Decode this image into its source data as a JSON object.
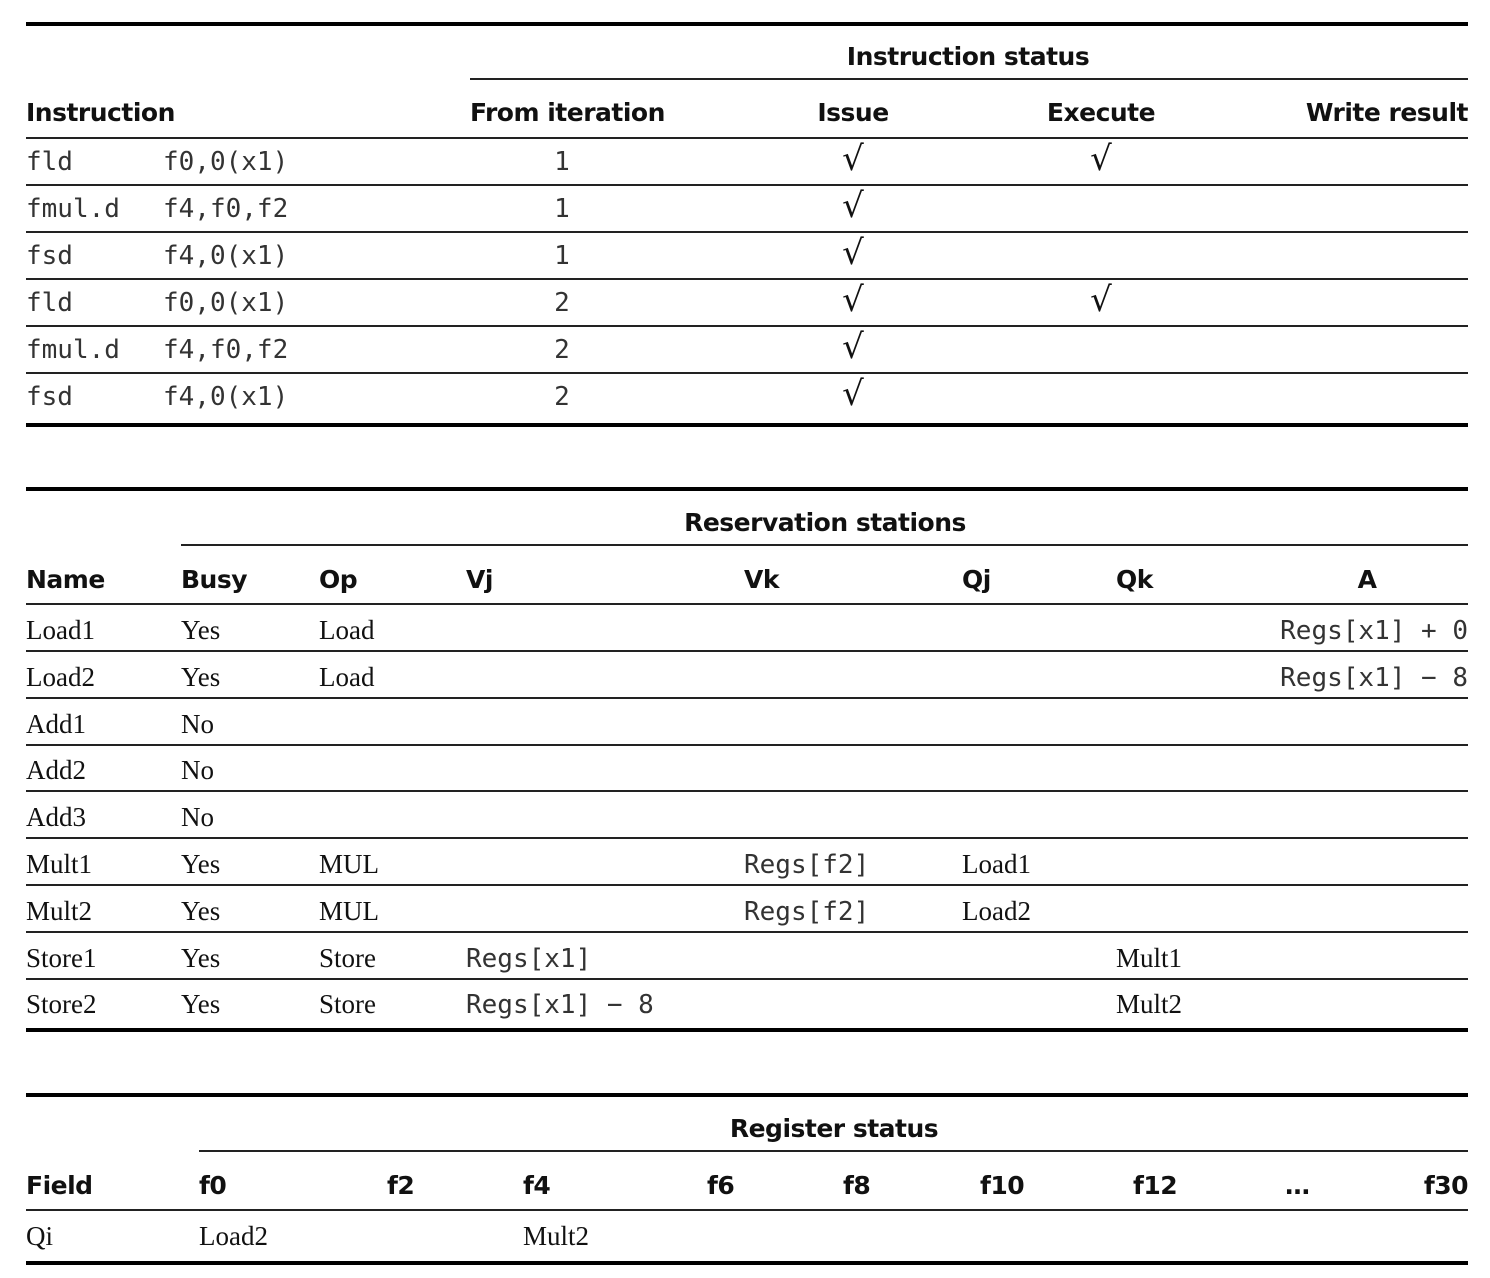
{
  "instruction_status": {
    "caption": "Instruction status",
    "headers": {
      "instruction": "Instruction",
      "iteration": "From iteration",
      "issue": "Issue",
      "execute": "Execute",
      "write": "Write result"
    },
    "check_symbol": "√",
    "rows": [
      {
        "op": "fld",
        "operands": "f0,0(x1)",
        "iteration": "1",
        "issue": true,
        "execute": true,
        "write": false
      },
      {
        "op": "fmul.d",
        "operands": "f4,f0,f2",
        "iteration": "1",
        "issue": true,
        "execute": false,
        "write": false
      },
      {
        "op": "fsd",
        "operands": "f4,0(x1)",
        "iteration": "1",
        "issue": true,
        "execute": false,
        "write": false
      },
      {
        "op": "fld",
        "operands": "f0,0(x1)",
        "iteration": "2",
        "issue": true,
        "execute": true,
        "write": false
      },
      {
        "op": "fmul.d",
        "operands": "f4,f0,f2",
        "iteration": "2",
        "issue": true,
        "execute": false,
        "write": false
      },
      {
        "op": "fsd",
        "operands": "f4,0(x1)",
        "iteration": "2",
        "issue": true,
        "execute": false,
        "write": false
      }
    ]
  },
  "reservation_stations": {
    "caption": "Reservation stations",
    "headers": [
      "Name",
      "Busy",
      "Op",
      "Vj",
      "Vk",
      "Qj",
      "Qk",
      "A"
    ],
    "rows": [
      [
        "Load1",
        "Yes",
        "Load",
        "",
        "",
        "",
        "",
        "Regs[x1] + 0"
      ],
      [
        "Load2",
        "Yes",
        "Load",
        "",
        "",
        "",
        "",
        "Regs[x1] − 8"
      ],
      [
        "Add1",
        "No",
        "",
        "",
        "",
        "",
        "",
        ""
      ],
      [
        "Add2",
        "No",
        "",
        "",
        "",
        "",
        "",
        ""
      ],
      [
        "Add3",
        "No",
        "",
        "",
        "",
        "",
        "",
        ""
      ],
      [
        "Mult1",
        "Yes",
        "MUL",
        "",
        "Regs[f2]",
        "Load1",
        "",
        ""
      ],
      [
        "Mult2",
        "Yes",
        "MUL",
        "",
        "Regs[f2]",
        "Load2",
        "",
        ""
      ],
      [
        "Store1",
        "Yes",
        "Store",
        "Regs[x1]",
        "",
        "",
        "Mult1",
        ""
      ],
      [
        "Store2",
        "Yes",
        "Store",
        "Regs[x1] − 8",
        "",
        "",
        "Mult2",
        ""
      ]
    ]
  },
  "register_status": {
    "caption": "Register status",
    "headers": [
      "Field",
      "f0",
      "f2",
      "f4",
      "f6",
      "f8",
      "f10",
      "f12",
      "…",
      "f30"
    ],
    "rows": [
      [
        "Qi",
        "Load2",
        "",
        "Mult2",
        "",
        "",
        "",
        "",
        "",
        ""
      ]
    ]
  }
}
